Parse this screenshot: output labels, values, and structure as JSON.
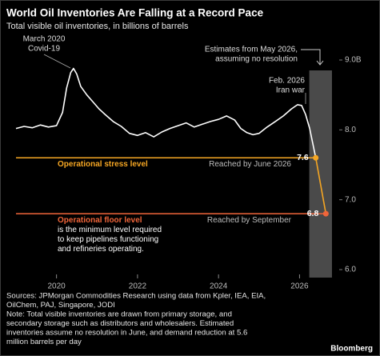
{
  "chart_data": {
    "type": "line",
    "title": "World Oil Inventories Are Falling at a Record Pace",
    "subtitle": "Total visible oil inventories, in billions of barrels",
    "x": [
      2019.0,
      2019.2,
      2019.4,
      2019.6,
      2019.8,
      2020.0,
      2020.15,
      2020.25,
      2020.35,
      2020.42,
      2020.5,
      2020.6,
      2020.75,
      2020.9,
      2021.05,
      2021.2,
      2021.4,
      2021.6,
      2021.8,
      2022.0,
      2022.2,
      2022.4,
      2022.6,
      2022.8,
      2023.0,
      2023.2,
      2023.4,
      2023.6,
      2023.8,
      2024.0,
      2024.2,
      2024.4,
      2024.55,
      2024.7,
      2024.85,
      2025.0,
      2025.2,
      2025.4,
      2025.6,
      2025.8,
      2025.95,
      2026.05,
      2026.15,
      2026.25,
      2026.4
    ],
    "series": [
      {
        "color": "#ffffff",
        "values": [
          8.02,
          8.05,
          8.03,
          8.07,
          8.04,
          8.06,
          8.25,
          8.6,
          8.82,
          8.88,
          8.8,
          8.62,
          8.5,
          8.4,
          8.3,
          8.22,
          8.12,
          8.05,
          7.95,
          7.92,
          7.96,
          7.9,
          7.97,
          8.02,
          8.06,
          8.1,
          8.04,
          8.08,
          8.12,
          8.15,
          8.2,
          8.14,
          8.02,
          7.96,
          7.93,
          7.95,
          8.04,
          8.12,
          8.2,
          8.3,
          8.36,
          8.35,
          8.22,
          8.02,
          7.6
        ]
      }
    ],
    "estimate": {
      "x": [
        2026.4,
        2026.65
      ],
      "values": [
        7.6,
        6.8
      ],
      "colors": [
        "#f5a623",
        "#f0653a"
      ]
    },
    "estimate_band": {
      "x": [
        2026.24,
        2026.8
      ],
      "color": "#4a4a4a"
    },
    "xlim": [
      2019.0,
      2026.9
    ],
    "ylim": [
      6.0,
      9.0
    ],
    "xticks": [
      2020,
      2022,
      2024,
      2026
    ],
    "yticks": [
      {
        "value": 6.0,
        "label": "6.0"
      },
      {
        "value": 7.0,
        "label": "7.0"
      },
      {
        "value": 8.0,
        "label": "8.0"
      },
      {
        "value": 9.0,
        "label": "9.0B"
      }
    ],
    "reference_lines": [
      {
        "value": 7.6,
        "color": "#f5a623",
        "label": "Operational stress level",
        "note": "Reached by June 2026"
      },
      {
        "value": 6.8,
        "color": "#f0653a",
        "label": "Operational floor level",
        "note": "Reached by September",
        "description": [
          "is the minimum level required",
          "to keep pipelines functioning",
          "and refineries operating."
        ]
      }
    ],
    "annotations": [
      {
        "lines": [
          "March 2020",
          "Covid-19"
        ]
      },
      {
        "lines": [
          "Feb. 2026",
          "Iran war"
        ]
      },
      {
        "lines": [
          "Estimates from May 2026,",
          "assuming no resolution"
        ]
      }
    ],
    "footer": [
      "Sources: JPMorgan Commodities Research using data from Kpler, IEA, EIA,",
      "OilChem, PAJ, Singapore, JODI",
      "Note: Total visible inventories are drawn from primary storage, and",
      "secondary storage such as distributors and wholesalers. Estimated",
      "inventories assume no resolution in June, and demand reduction at 5.6",
      "million barrels per day"
    ],
    "brand": "Bloomberg"
  }
}
